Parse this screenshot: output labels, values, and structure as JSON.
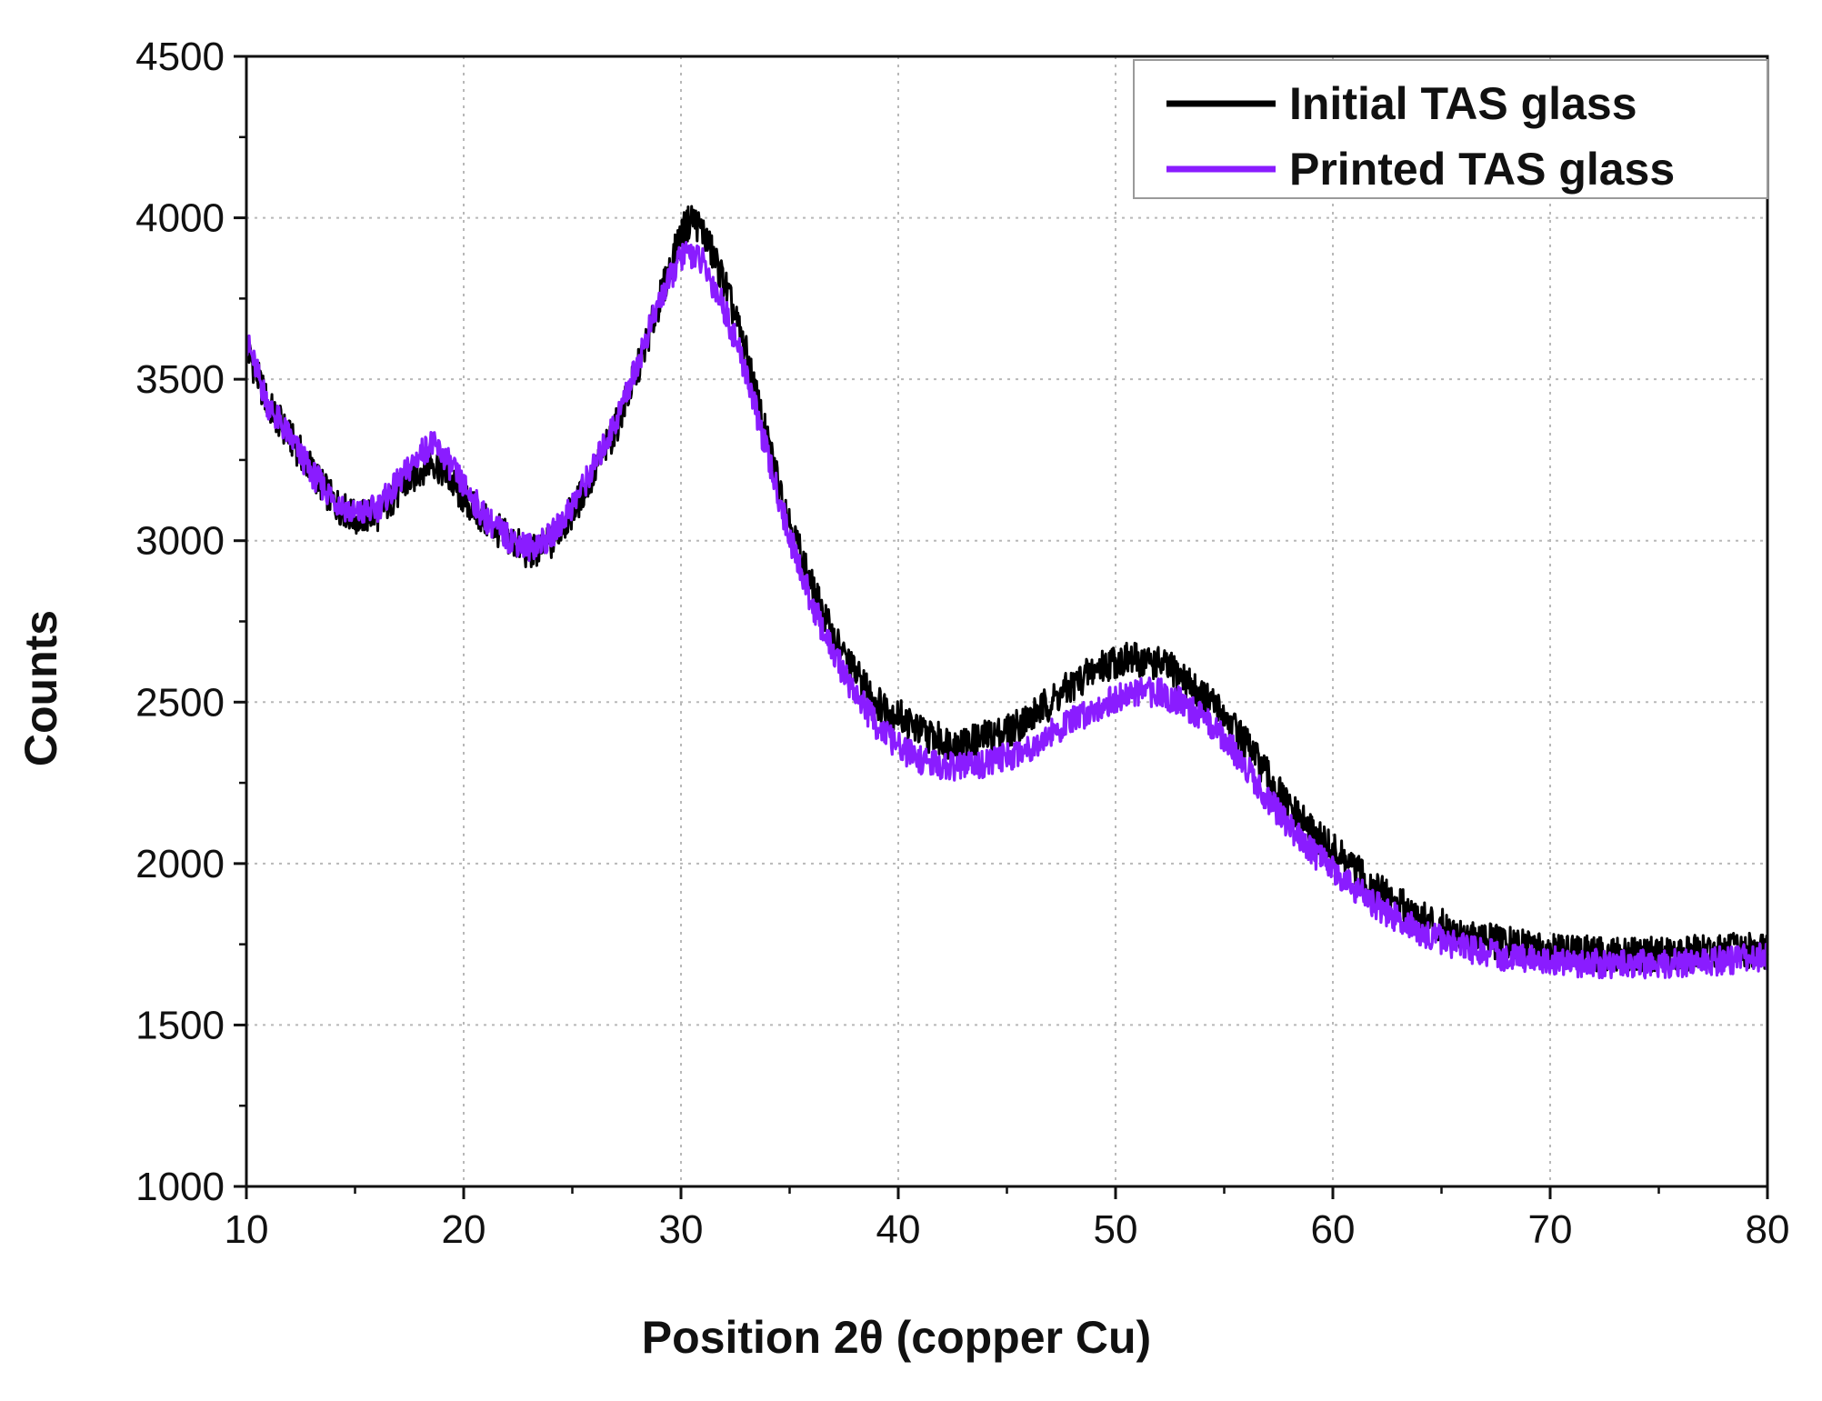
{
  "chart_data": {
    "type": "line",
    "title": "",
    "xlabel": "Position 2θ (copper Cu)",
    "ylabel": "Counts",
    "xlim": [
      10,
      80
    ],
    "ylim": [
      1000,
      4500
    ],
    "x_ticks": [
      10,
      20,
      30,
      40,
      50,
      60,
      70,
      80
    ],
    "y_ticks": [
      1000,
      1500,
      2000,
      2500,
      3000,
      3500,
      4000,
      4500
    ],
    "grid": true,
    "legend_position": "top-right",
    "series": [
      {
        "name": "Initial TAS glass",
        "color": "#000000",
        "x": [
          10,
          11,
          12,
          13,
          14,
          15,
          16,
          17,
          18,
          18.5,
          19,
          20,
          21,
          22,
          23,
          24,
          25,
          26,
          27,
          28,
          29,
          30,
          30.5,
          31,
          32,
          33,
          34,
          35,
          36,
          37,
          38,
          39,
          40,
          41,
          42,
          43,
          44,
          45,
          46,
          47,
          48,
          49,
          50,
          51,
          52,
          53,
          54,
          55,
          56,
          57,
          58,
          59,
          60,
          62,
          64,
          66,
          68,
          70,
          72,
          74,
          76,
          78,
          80
        ],
        "y": [
          3600,
          3420,
          3320,
          3220,
          3120,
          3070,
          3080,
          3150,
          3220,
          3250,
          3220,
          3130,
          3060,
          3010,
          2960,
          2990,
          3090,
          3210,
          3350,
          3530,
          3740,
          3950,
          4000,
          3960,
          3800,
          3580,
          3300,
          3060,
          2860,
          2700,
          2590,
          2500,
          2460,
          2410,
          2380,
          2370,
          2390,
          2410,
          2450,
          2500,
          2550,
          2600,
          2630,
          2630,
          2620,
          2580,
          2520,
          2460,
          2370,
          2270,
          2170,
          2100,
          2040,
          1920,
          1830,
          1780,
          1750,
          1730,
          1720,
          1720,
          1720,
          1730,
          1730
        ]
      },
      {
        "name": "Printed TAS glass",
        "color": "#8a1cff",
        "x": [
          10,
          11,
          12,
          13,
          14,
          15,
          16,
          17,
          18,
          18.5,
          19,
          20,
          21,
          22,
          23,
          24,
          25,
          26,
          27,
          28,
          29,
          30,
          30.5,
          31,
          32,
          33,
          34,
          35,
          36,
          37,
          38,
          39,
          40,
          41,
          42,
          43,
          44,
          45,
          46,
          47,
          48,
          49,
          50,
          51,
          52,
          53,
          54,
          55,
          56,
          57,
          58,
          59,
          60,
          62,
          64,
          66,
          68,
          70,
          72,
          74,
          76,
          78,
          80
        ],
        "y": [
          3620,
          3420,
          3320,
          3210,
          3130,
          3080,
          3100,
          3180,
          3270,
          3300,
          3270,
          3170,
          3070,
          3010,
          2980,
          3010,
          3110,
          3230,
          3370,
          3550,
          3740,
          3880,
          3890,
          3860,
          3720,
          3520,
          3260,
          3010,
          2810,
          2650,
          2530,
          2430,
          2360,
          2320,
          2300,
          2300,
          2310,
          2330,
          2360,
          2400,
          2440,
          2480,
          2510,
          2530,
          2530,
          2500,
          2450,
          2390,
          2300,
          2200,
          2110,
          2040,
          1980,
          1870,
          1790,
          1740,
          1710,
          1700,
          1690,
          1690,
          1690,
          1700,
          1710
        ]
      }
    ]
  }
}
